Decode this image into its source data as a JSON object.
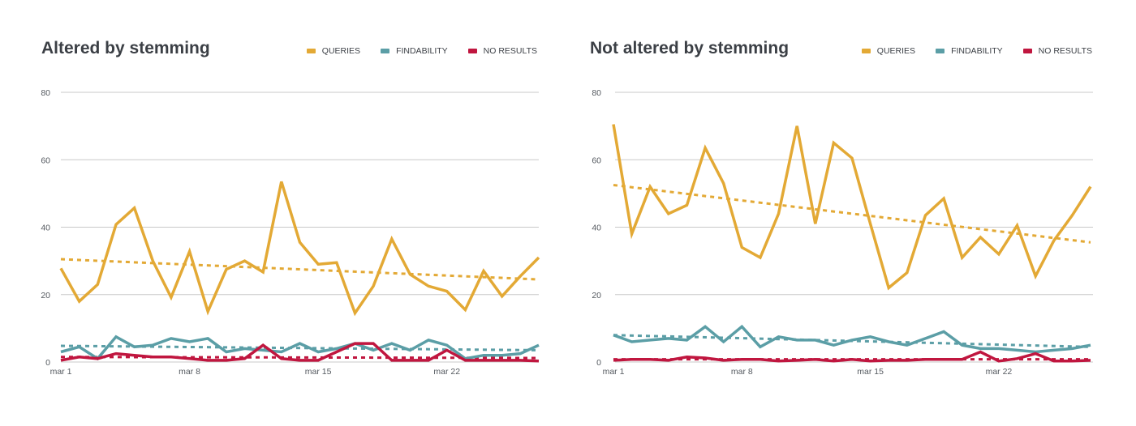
{
  "colors": {
    "queries": "#e3a935",
    "findability": "#5b9ea6",
    "no_results": "#c0163f",
    "grid": "#c8c8c8",
    "text": "#3b3f45"
  },
  "legend": {
    "queries": "QUERIES",
    "findability": "FINDABILITY",
    "no_results": "NO RESULTS"
  },
  "chart_data": [
    {
      "type": "line",
      "title": "Altered by stemming",
      "legend_position": "top-right",
      "grid": true,
      "x": [
        "mar 1",
        "mar 2",
        "mar 3",
        "mar 4",
        "mar 5",
        "mar 6",
        "mar 7",
        "mar 8",
        "mar 9",
        "mar 10",
        "mar 11",
        "mar 12",
        "mar 13",
        "mar 14",
        "mar 15",
        "mar 16",
        "mar 17",
        "mar 18",
        "mar 19",
        "mar 20",
        "mar 21",
        "mar 22",
        "mar 23",
        "mar 24",
        "mar 25",
        "mar 26",
        "mar 27"
      ],
      "x_ticks": [
        "mar 1",
        "mar 8",
        "mar 15",
        "mar 22"
      ],
      "y_ticks": [
        0,
        20,
        40,
        60,
        80
      ],
      "ylim": [
        0,
        80
      ],
      "series": [
        {
          "name": "QUERIES",
          "key": "queries",
          "values": [
            27.8,
            18,
            23,
            40.8,
            45.7,
            30,
            19.2,
            32.8,
            15,
            27.5,
            30,
            26.7,
            53.5,
            35.5,
            29,
            29.5,
            14.5,
            22.5,
            36.5,
            26,
            22.5,
            21,
            15.5,
            27,
            19.5,
            25.5,
            31
          ],
          "trend": [
            30.5,
            24.5
          ]
        },
        {
          "name": "FINDABILITY",
          "key": "findability",
          "values": [
            3,
            4.5,
            1,
            7.5,
            4.5,
            5,
            7,
            6,
            7,
            3,
            4,
            3.5,
            3,
            5.5,
            3,
            4,
            5.5,
            3.5,
            5.5,
            3.5,
            6.5,
            5,
            1,
            2,
            2,
            2.5,
            5
          ],
          "trend": [
            4.8,
            3.5
          ]
        },
        {
          "name": "NO RESULTS",
          "key": "no_results",
          "values": [
            0.5,
            1.5,
            1,
            2.5,
            2,
            1.5,
            1.5,
            1,
            0.5,
            0.5,
            1,
            5,
            1,
            0.5,
            0.5,
            3,
            5.5,
            5.5,
            0.5,
            0.5,
            0.5,
            3.5,
            0.5,
            0.5,
            0.5,
            0.5,
            0.3
          ],
          "trend": [
            1.5,
            1.2
          ]
        }
      ]
    },
    {
      "type": "line",
      "title": "Not altered by stemming",
      "legend_position": "top-right",
      "grid": true,
      "x": [
        "mar 1",
        "mar 2",
        "mar 3",
        "mar 4",
        "mar 5",
        "mar 6",
        "mar 7",
        "mar 8",
        "mar 9",
        "mar 10",
        "mar 11",
        "mar 12",
        "mar 13",
        "mar 14",
        "mar 15",
        "mar 16",
        "mar 17",
        "mar 18",
        "mar 19",
        "mar 20",
        "mar 21",
        "mar 22",
        "mar 23",
        "mar 24",
        "mar 25",
        "mar 26",
        "mar 27"
      ],
      "x_ticks": [
        "mar 1",
        "mar 8",
        "mar 15",
        "mar 22"
      ],
      "y_ticks": [
        0,
        20,
        40,
        60,
        80
      ],
      "ylim": [
        0,
        80
      ],
      "series": [
        {
          "name": "QUERIES",
          "key": "queries",
          "values": [
            70.5,
            38,
            52,
            44,
            46.5,
            63.5,
            53,
            34,
            31,
            44,
            70,
            41,
            65,
            60.5,
            41,
            22,
            26.5,
            43.5,
            48.5,
            31,
            37,
            32,
            40.5,
            25.5,
            36,
            43.5,
            52
          ],
          "trend": [
            52.5,
            35.5
          ]
        },
        {
          "name": "FINDABILITY",
          "key": "findability",
          "values": [
            8,
            6,
            6.5,
            7,
            6.5,
            10.5,
            6,
            10.5,
            4.5,
            7.5,
            6.5,
            6.5,
            5,
            6.5,
            7.5,
            6,
            5,
            7,
            9,
            5,
            4,
            4,
            3.5,
            3,
            3.5,
            4,
            5
          ],
          "trend": [
            8,
            4.5
          ]
        },
        {
          "name": "NO RESULTS",
          "key": "no_results",
          "values": [
            0.5,
            0.8,
            0.8,
            0.5,
            1.5,
            1.2,
            0.5,
            0.8,
            0.8,
            0.3,
            0.5,
            0.8,
            0.3,
            0.8,
            0.3,
            0.5,
            0.5,
            0.8,
            0.8,
            0.8,
            3,
            0.3,
            1,
            2.5,
            0.3,
            0.3,
            0.5
          ],
          "trend": [
            0.8,
            0.8
          ]
        }
      ]
    }
  ]
}
